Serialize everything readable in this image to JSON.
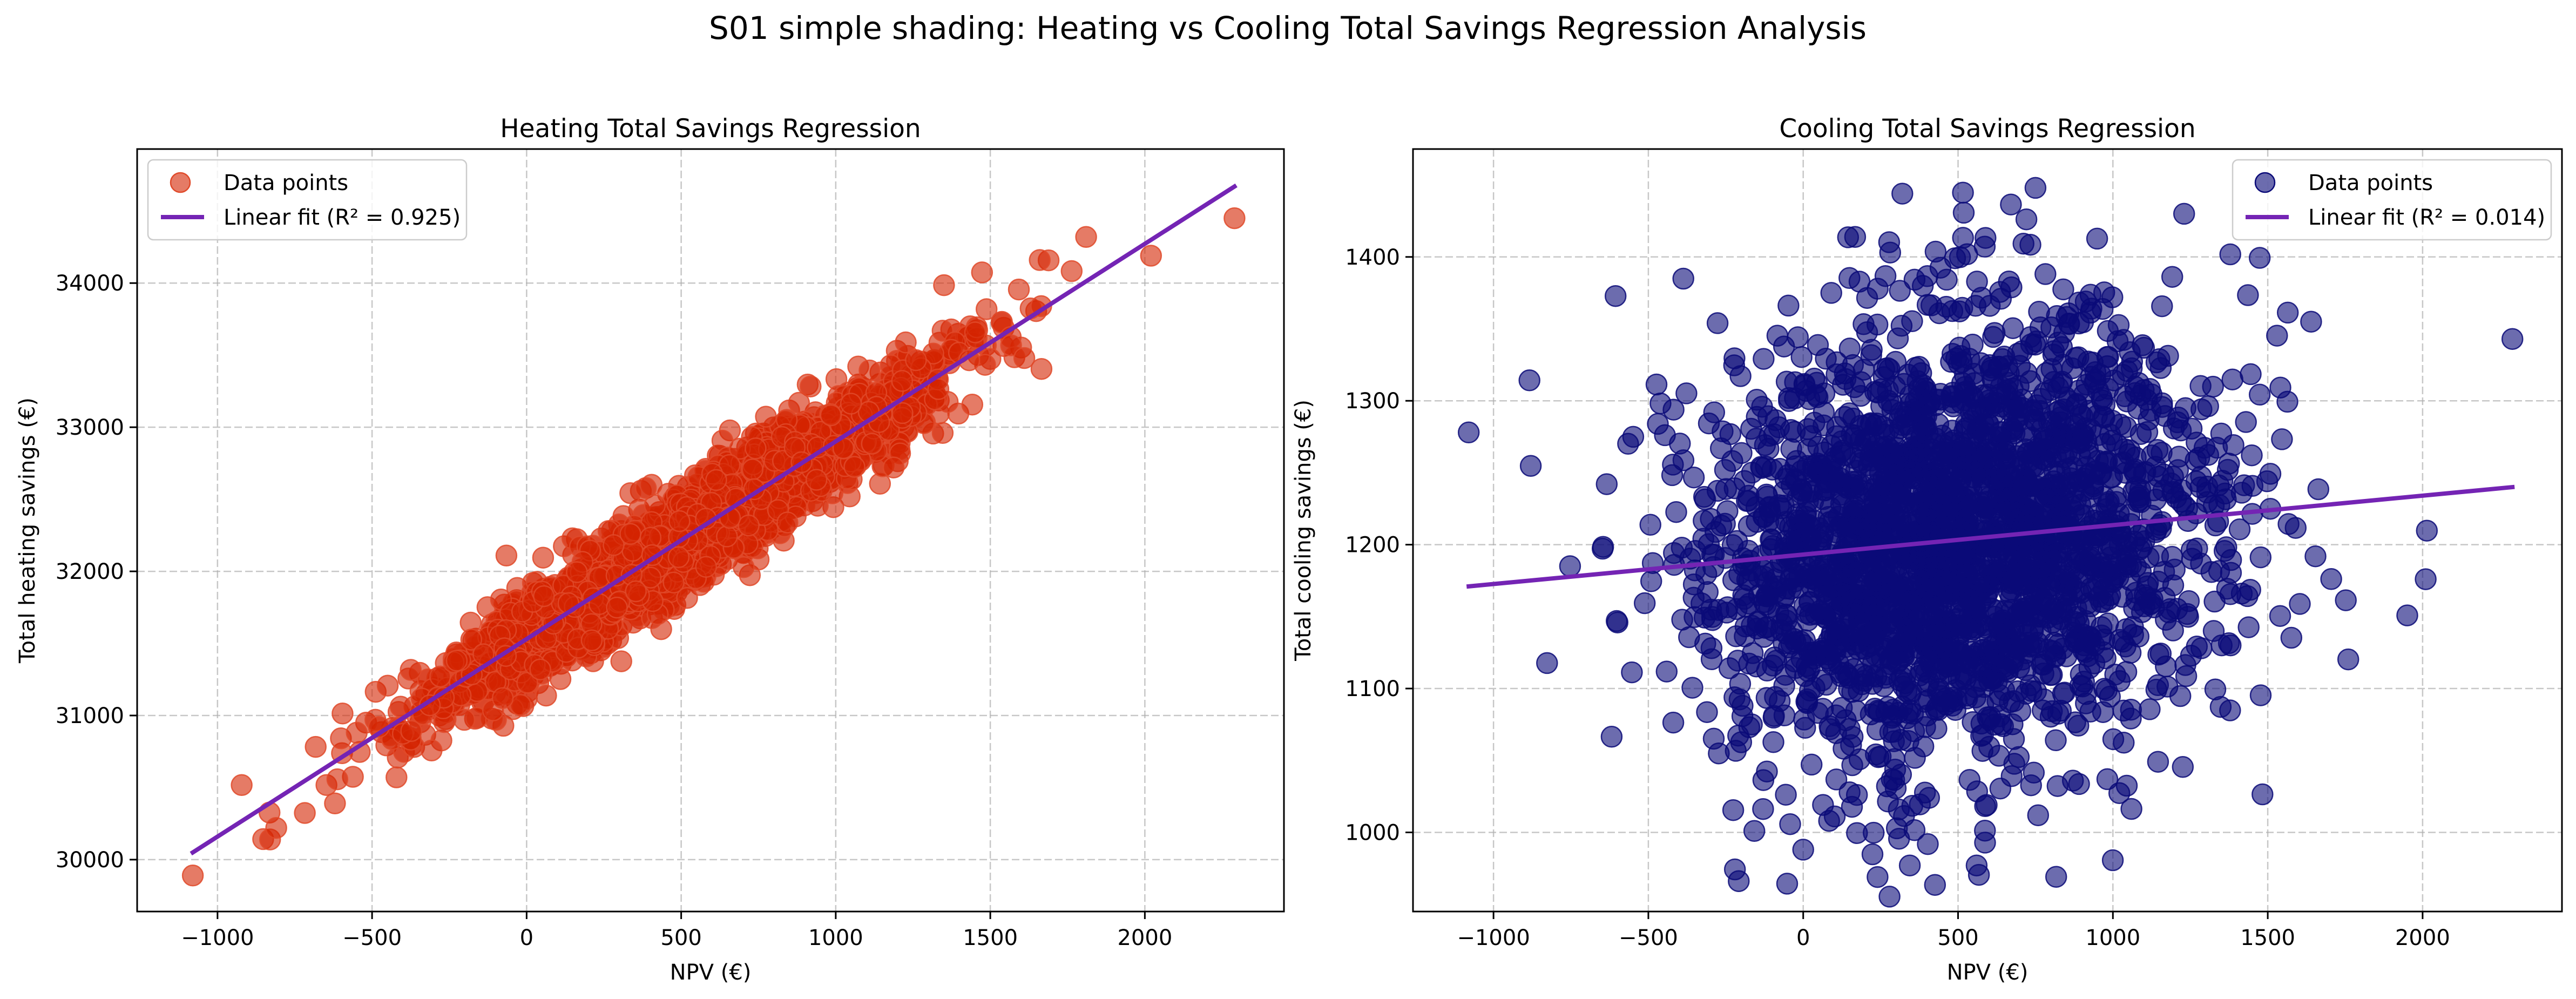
{
  "figure": {
    "suptitle": "S01 simple shading: Heating vs Cooling Total Savings Regression Analysis"
  },
  "chart_data": [
    {
      "type": "scatter",
      "title": "Heating Total Savings Regression",
      "xlabel": "NPV (€)",
      "ylabel": "Total heating savings (€)",
      "xlim": [
        -1260,
        2450
      ],
      "ylim": [
        29640,
        34930
      ],
      "xticks": [
        -1000,
        -500,
        0,
        500,
        1000,
        1500,
        2000
      ],
      "xtick_labels": [
        "−1000",
        "−500",
        "0",
        "500",
        "1000",
        "1500",
        "2000"
      ],
      "yticks": [
        30000,
        31000,
        32000,
        33000,
        34000
      ],
      "ytick_labels": [
        "30000",
        "31000",
        "32000",
        "33000",
        "34000"
      ],
      "grid": true,
      "legend_position": "upper left",
      "legend": [
        "Data points",
        "Linear fit (R² = 0.925)"
      ],
      "point_color": "#d42300",
      "point_edge": "#e04a2a",
      "fit_color": "#7424b4",
      "fit_line": {
        "x": [
          -1080,
          2290
        ],
        "y": [
          30050,
          34670
        ]
      },
      "cloud_model": {
        "n": 2600,
        "x_mean": 500,
        "x_sd": 410,
        "slope": 1.371,
        "intercept": 31530,
        "resid_sd": 175,
        "seed": 11
      },
      "notable_points": [
        {
          "x": -1080,
          "y": 29890
        },
        {
          "x": 2290,
          "y": 34450
        },
        {
          "x": 2020,
          "y": 34190
        },
        {
          "x": 1810,
          "y": 34320
        },
        {
          "x": 1660,
          "y": 34160
        },
        {
          "x": -830,
          "y": 30140
        },
        {
          "x": -810,
          "y": 30220
        },
        {
          "x": -620,
          "y": 30390
        },
        {
          "x": 1610,
          "y": 33480
        }
      ]
    },
    {
      "type": "scatter",
      "title": "Cooling Total Savings Regression",
      "xlabel": "NPV (€)",
      "ylabel": "Total cooling savings (€)",
      "xlim": [
        -1260,
        2450
      ],
      "ylim": [
        945,
        1475
      ],
      "xticks": [
        -1000,
        -500,
        0,
        500,
        1000,
        1500,
        2000
      ],
      "xtick_labels": [
        "−1000",
        "−500",
        "0",
        "500",
        "1000",
        "1500",
        "2000"
      ],
      "yticks": [
        1000,
        1100,
        1200,
        1300,
        1400
      ],
      "ytick_labels": [
        "1000",
        "1100",
        "1200",
        "1300",
        "1400"
      ],
      "grid": true,
      "legend_position": "upper right",
      "legend": [
        "Data points",
        "Linear fit (R² = 0.014)"
      ],
      "point_color": "#0a0a78",
      "point_edge": "#0a0a78",
      "fit_color": "#7424b4",
      "fit_line": {
        "x": [
          -1080,
          2290
        ],
        "y": [
          1171,
          1240
        ]
      },
      "cloud_model": {
        "n": 2600,
        "x_mean": 500,
        "x_sd": 410,
        "slope": 0.0205,
        "intercept": 1193,
        "resid_sd": 78,
        "seed": 29
      },
      "notable_points": [
        {
          "x": -1080,
          "y": 1278
        },
        {
          "x": 2290,
          "y": 1343
        },
        {
          "x": 2010,
          "y": 1176
        },
        {
          "x": 320,
          "y": 1444
        },
        {
          "x": 750,
          "y": 1448
        },
        {
          "x": 1230,
          "y": 1430
        },
        {
          "x": 240,
          "y": 969
        },
        {
          "x": 560,
          "y": 977
        },
        {
          "x": 0,
          "y": 988
        },
        {
          "x": 1640,
          "y": 1355
        }
      ]
    }
  ]
}
